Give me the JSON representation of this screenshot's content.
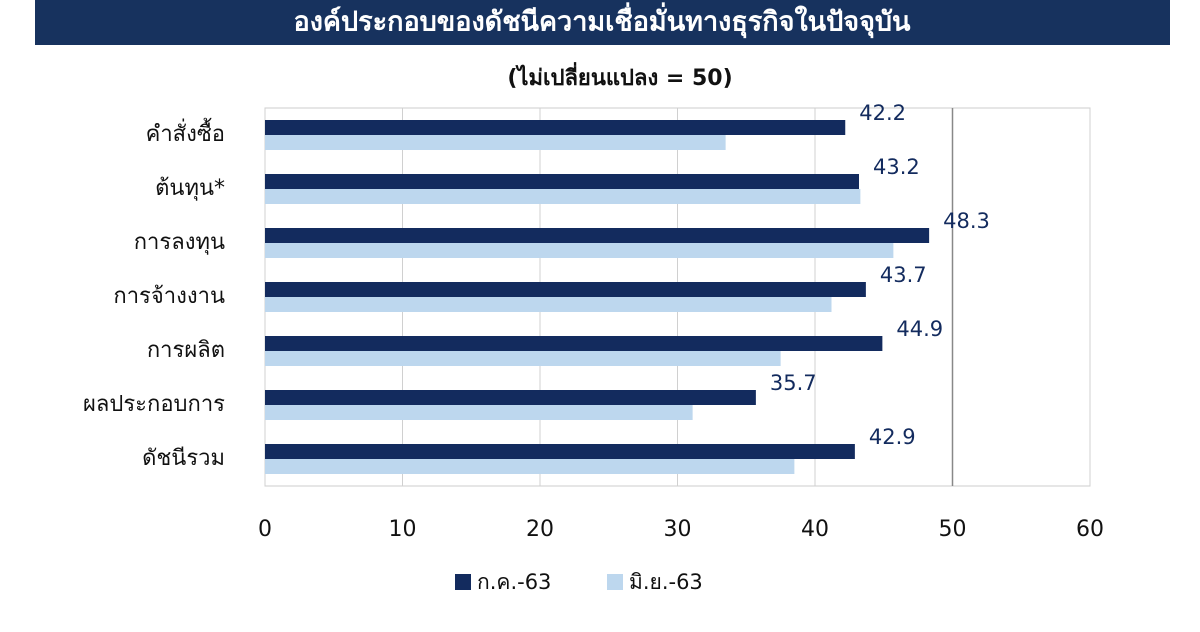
{
  "chart_data": {
    "type": "bar",
    "orientation": "horizontal",
    "title": "องค์ประกอบของดัชนีความเชื่อมั่นทางธุรกิจในปัจจุบัน",
    "subtitle": "(ไม่เปลี่ยนแปลง = 50)",
    "categories": [
      "คำสั่งซื้อ",
      "ต้นทุน*",
      "การลงทุน",
      "การจ้างงาน",
      "การผลิต",
      "ผลประกอบการ",
      "ดัชนีรวม"
    ],
    "series": [
      {
        "name": "ก.ค.-63",
        "color": "#132b5e",
        "values": [
          42.2,
          43.2,
          48.3,
          43.7,
          44.9,
          35.7,
          42.9
        ],
        "show_labels": true
      },
      {
        "name": "มิ.ย.-63",
        "color": "#bdd7ee",
        "values": [
          33.5,
          43.3,
          45.7,
          41.2,
          37.5,
          31.1,
          38.5
        ],
        "show_labels": false
      }
    ],
    "xlim": [
      0,
      60
    ],
    "xticks": [
      0,
      10,
      20,
      30,
      40,
      50,
      60
    ],
    "grid": true,
    "reference_line": 50,
    "legend": "bottom"
  }
}
